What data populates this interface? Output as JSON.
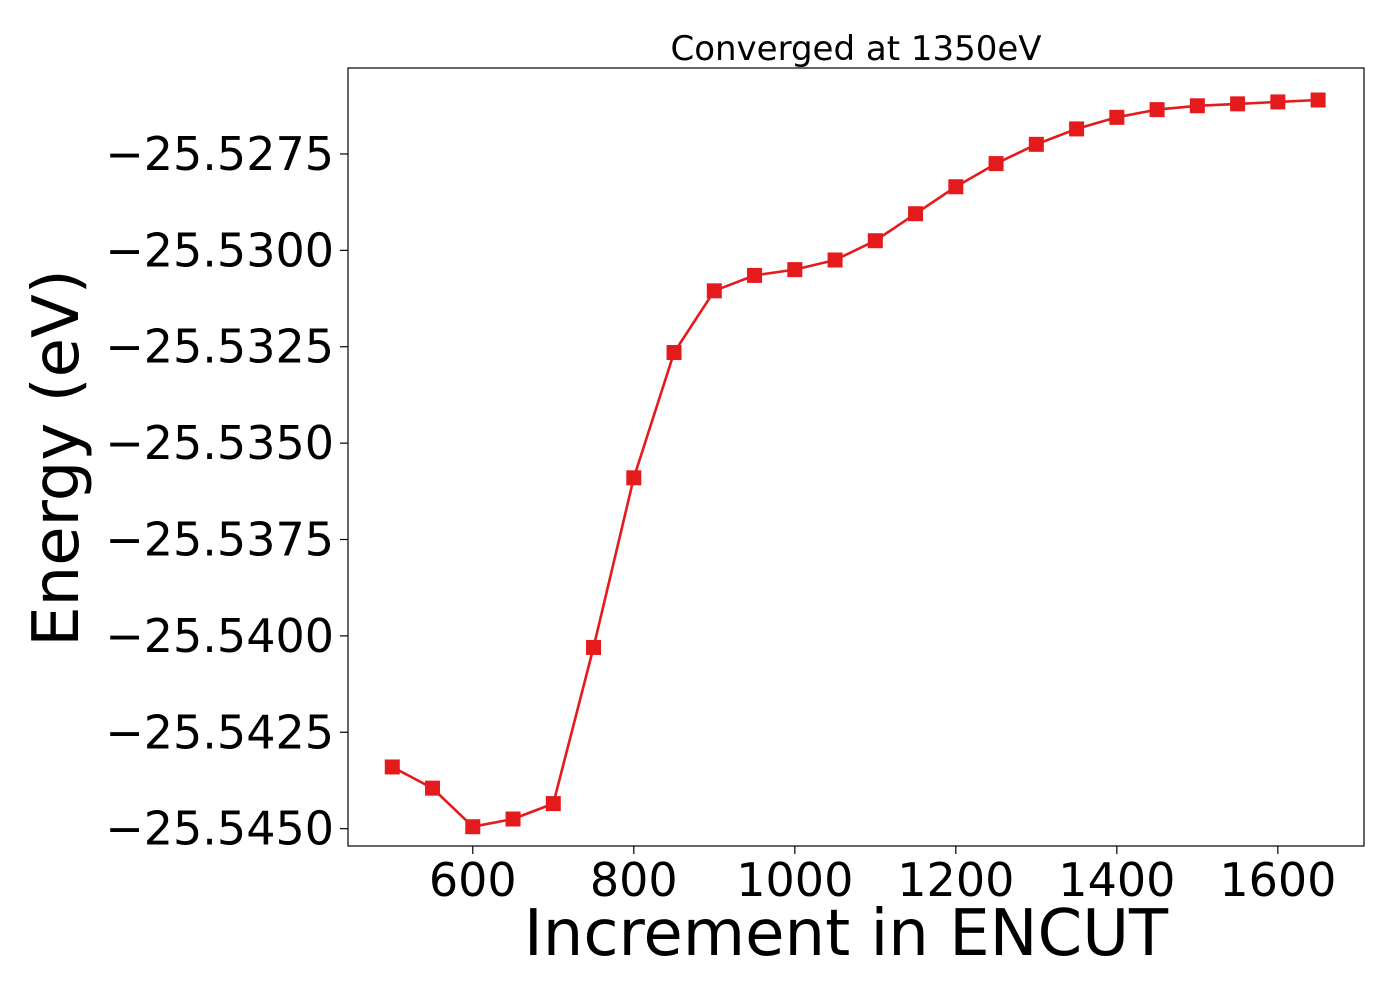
{
  "chart_data": {
    "type": "line",
    "title": "Converged at 1350eV",
    "xlabel": "Increment in ENCUT",
    "ylabel": "Energy (eV)",
    "xlim": [
      445,
      1707
    ],
    "ylim": [
      -25.54545,
      -25.52527
    ],
    "x_ticks": [
      600,
      800,
      1000,
      1200,
      1400,
      1600
    ],
    "x_tick_labels": [
      "600",
      "800",
      "1000",
      "1200",
      "1400",
      "1600"
    ],
    "y_ticks": [
      -25.5275,
      -25.53,
      -25.5325,
      -25.535,
      -25.5375,
      -25.54,
      -25.5425,
      -25.545
    ],
    "y_tick_labels": [
      "−25.5275",
      "−25.5300",
      "−25.5325",
      "−25.5350",
      "−25.5375",
      "−25.5400",
      "−25.5425",
      "−25.5450"
    ],
    "grid": false,
    "legend": "none",
    "series": [
      {
        "color": "#e41a1c",
        "marker": "square",
        "x": [
          500,
          550,
          600,
          650,
          700,
          750,
          800,
          850,
          900,
          950,
          1000,
          1050,
          1100,
          1150,
          1200,
          1250,
          1300,
          1350,
          1400,
          1450,
          1500,
          1550,
          1600,
          1650
        ],
        "y": [
          -25.5434,
          -25.54395,
          -25.54495,
          -25.54475,
          -25.54435,
          -25.5403,
          -25.5359,
          -25.53265,
          -25.53105,
          -25.53065,
          -25.5305,
          -25.53025,
          -25.52975,
          -25.52905,
          -25.52835,
          -25.52775,
          -25.52725,
          -25.52685,
          -25.52655,
          -25.52635,
          -25.52625,
          -25.5262,
          -25.52615,
          -25.5261
        ]
      }
    ]
  }
}
